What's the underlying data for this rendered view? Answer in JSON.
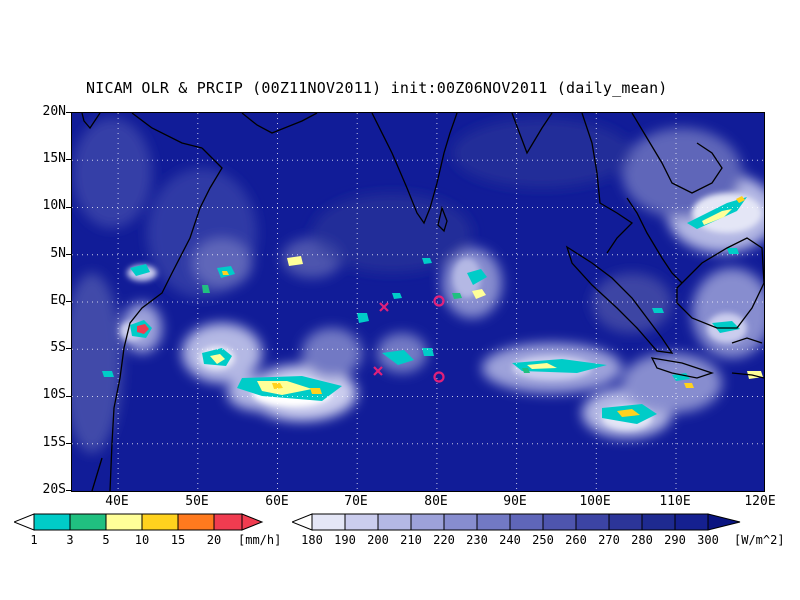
{
  "title": "NICAM OLR & PRCIP (00Z11NOV2011) init:00Z06NOV2011 (daily_mean)",
  "map": {
    "lat_labels": [
      "20N",
      "15N",
      "10N",
      "5N",
      "EQ",
      "5S",
      "10S",
      "15S",
      "20S"
    ],
    "lon_labels": [
      "40E",
      "50E",
      "60E",
      "70E",
      "80E",
      "90E",
      "100E",
      "110E",
      "120E"
    ],
    "markers": [
      {
        "type": "x",
        "lon": 73,
        "lat": -0.7,
        "color": "#e0207a",
        "name": "storm-marker-x-north"
      },
      {
        "type": "x",
        "lon": 72.3,
        "lat": -7.5,
        "color": "#e0207a",
        "name": "storm-marker-x-south"
      },
      {
        "type": "o",
        "lon": 80,
        "lat": 0,
        "color": "#e0207a",
        "name": "observation-circle-eq"
      },
      {
        "type": "o",
        "lon": 80,
        "lat": -8,
        "color": "#e0207a",
        "name": "observation-circle-8s"
      }
    ]
  },
  "precip_colorbar": {
    "labels": [
      "1",
      "3",
      "5",
      "10",
      "15",
      "20"
    ],
    "units": "[mm/h]",
    "colors": [
      "#ffffff",
      "#00ccc8",
      "#20c080",
      "#ffff99",
      "#ffd21e",
      "#ff7a1e",
      "#f03c50"
    ]
  },
  "olr_colorbar": {
    "labels": [
      "180",
      "190",
      "200",
      "210",
      "220",
      "230",
      "240",
      "250",
      "260",
      "270",
      "280",
      "290",
      "300"
    ],
    "units": "[W/m^2]",
    "colors": [
      "#ffffff",
      "#e4e6f6",
      "#cbcdee",
      "#b4b8e4",
      "#9da2da",
      "#878dcf",
      "#7279c4",
      "#5f66b9",
      "#4e55ae",
      "#3c44a4",
      "#2c3599",
      "#1e2a90",
      "#152090",
      "#0a1480"
    ]
  }
}
